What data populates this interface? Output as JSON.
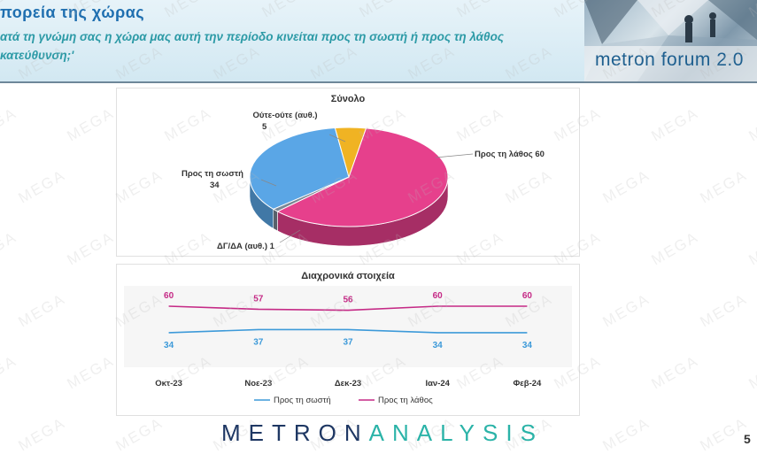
{
  "header": {
    "title": "πορεία της χώρας",
    "subtitle": "ατά τη γνώμη σας η χώρα μας αυτή την περίοδο κινείται προς τη σωστή ή προς τη λάθος κατεύθυνση;'",
    "logo_text": "metron forum 2.0"
  },
  "watermark": "MEGA",
  "footer": {
    "brand_part1": "METRON",
    "brand_part2": "ANALYSIS",
    "page_number": "5"
  },
  "colors": {
    "right": "#5aa6e6",
    "wrong": "#e6408c",
    "neutral": "#f0b323",
    "na": "#7a8794"
  },
  "chart_data": [
    {
      "type": "pie",
      "title": "Σύνολο",
      "slices": [
        {
          "label": "Προς τη λάθος",
          "value": 60,
          "color": "#e6408c"
        },
        {
          "label": "ΔΓ/ΔΑ (αυθ.)",
          "value": 1,
          "color": "#7a8794"
        },
        {
          "label": "Προς τη σωστή",
          "value": 34,
          "color": "#5aa6e6"
        },
        {
          "label": "Ούτε-ούτε (αυθ.)",
          "value": 5,
          "color": "#f0b323"
        }
      ],
      "labels_text": {
        "wrong": "Προς τη λάθος 60",
        "na": "ΔΓ/ΔΑ (αυθ.) 1",
        "right_name": "Προς τη σωστή",
        "right_value": "34",
        "neutral_name": "Ούτε-ούτε (αυθ.)",
        "neutral_value": "5"
      }
    },
    {
      "type": "line",
      "title": "Διαχρονικά στοιχεία",
      "categories": [
        "Οκτ-23",
        "Νοε-23",
        "Δεκ-23",
        "Ιαν-24",
        "Φεβ-24"
      ],
      "series": [
        {
          "name": "Προς τη σωστή",
          "values": [
            34,
            37,
            37,
            34,
            34
          ],
          "color": "#3d9ad9"
        },
        {
          "name": "Προς τη λάθος",
          "values": [
            60,
            57,
            56,
            60,
            60
          ],
          "color": "#c52a86"
        }
      ],
      "ylim": [
        0,
        80
      ],
      "legend": "bottom",
      "grid": false
    }
  ]
}
